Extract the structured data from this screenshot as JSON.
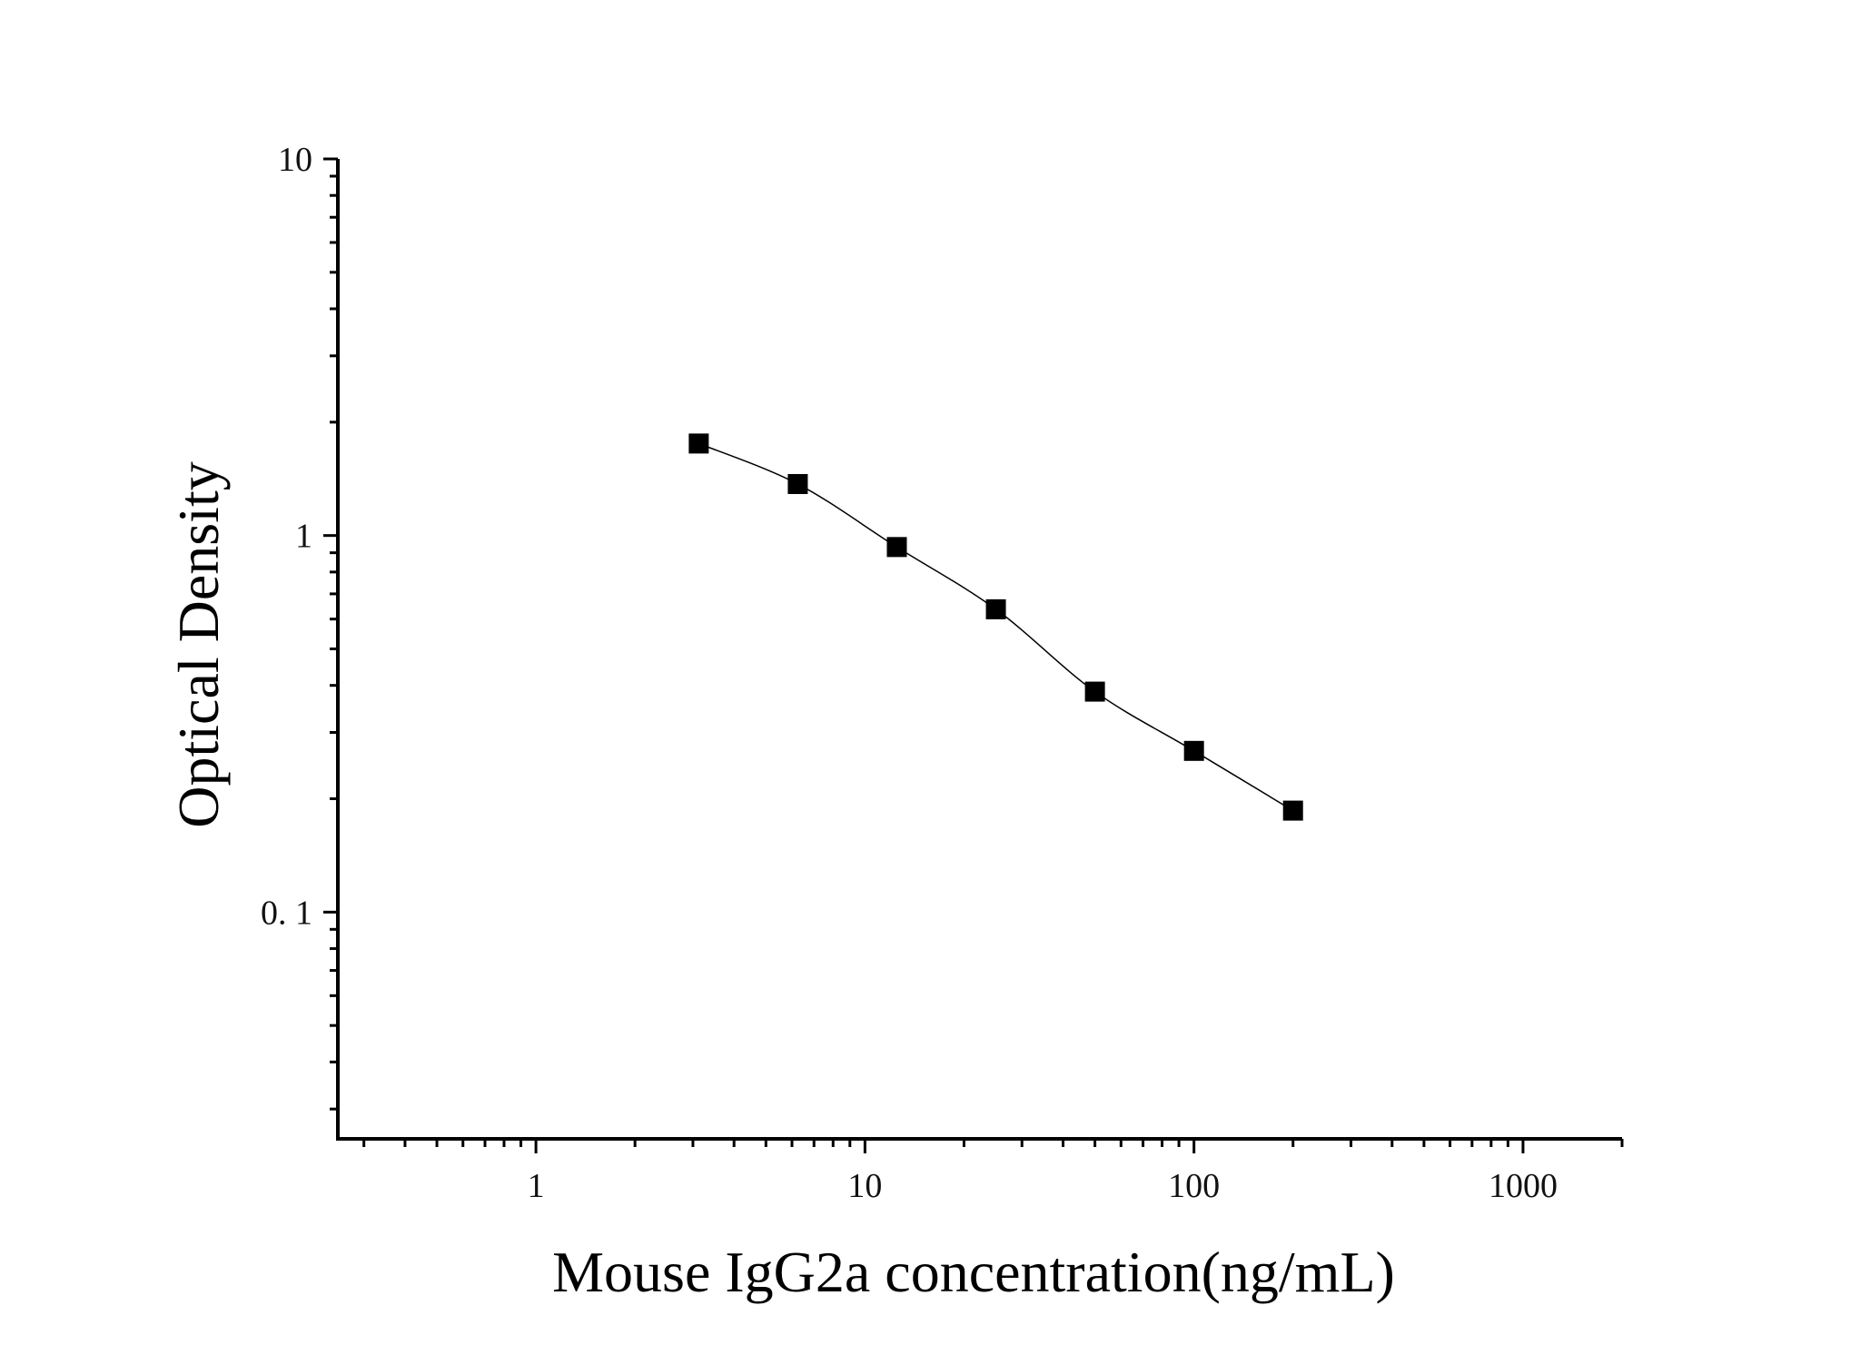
{
  "chart_data": {
    "type": "scatter",
    "xlabel": "Mouse IgG2a concentration(ng/mL)",
    "ylabel": "Optical Density",
    "x_scale": "log",
    "y_scale": "log",
    "xlim": [
      0.25,
      2000
    ],
    "ylim": [
      0.025,
      10
    ],
    "x_tick_labels": [
      "1",
      "10",
      "100",
      "1000"
    ],
    "y_tick_labels": [
      "0. 1",
      "1",
      "10"
    ],
    "grid": false,
    "series": [
      {
        "x": [
          3.125,
          6.25,
          12.5,
          25,
          50,
          100,
          200
        ],
        "y": [
          1.755,
          1.37,
          0.932,
          0.637,
          0.385,
          0.268,
          0.186
        ],
        "marker": "filled-square",
        "fit": "smooth-curve"
      }
    ],
    "colors": {
      "ink": "#000000",
      "background": "#ffffff"
    }
  }
}
